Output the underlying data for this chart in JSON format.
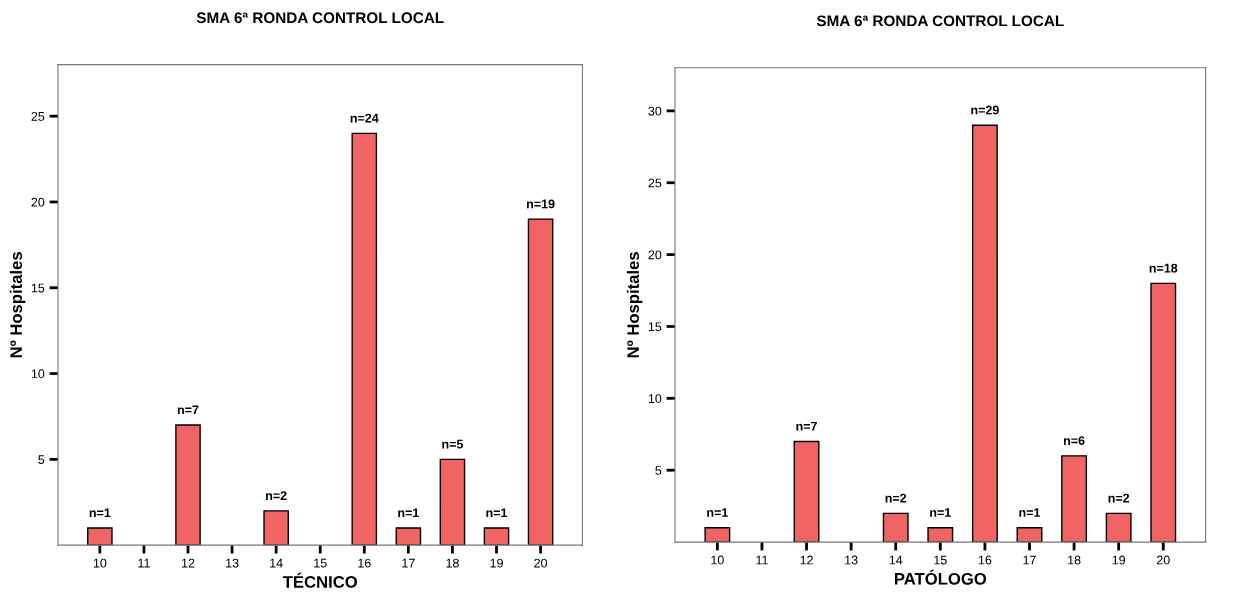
{
  "chart_data": [
    {
      "type": "bar",
      "title": "SMA 6ª RONDA CONTROL LOCAL",
      "xlabel": "TÉCNICO",
      "ylabel": "Nº Hospitales",
      "categories": [
        "10",
        "11",
        "12",
        "13",
        "14",
        "15",
        "16",
        "17",
        "18",
        "19",
        "20"
      ],
      "values": [
        1,
        0,
        7,
        0,
        2,
        0,
        24,
        1,
        5,
        1,
        19
      ],
      "value_labels": [
        "n=1",
        null,
        "n=7",
        null,
        "n=2",
        null,
        "n=24",
        "n=1",
        "n=5",
        "n=1",
        "n=19"
      ],
      "color": "#f06464",
      "ylim": [
        0,
        28
      ],
      "yticks": [
        5,
        10,
        15,
        20,
        25
      ],
      "grid": false,
      "legend": false
    },
    {
      "type": "bar",
      "title": "SMA 6ª RONDA CONTROL LOCAL",
      "xlabel": "PATÓLOGO",
      "ylabel": "Nº Hospitales",
      "categories": [
        "10",
        "11",
        "12",
        "13",
        "14",
        "15",
        "16",
        "17",
        "18",
        "19",
        "20"
      ],
      "values": [
        1,
        0,
        7,
        0,
        2,
        1,
        29,
        1,
        6,
        2,
        18
      ],
      "value_labels": [
        "n=1",
        null,
        "n=7",
        null,
        "n=2",
        "n=1",
        "n=29",
        "n=1",
        "n=6",
        "n=2",
        "n=18"
      ],
      "color": "#f06464",
      "ylim": [
        0,
        33
      ],
      "yticks": [
        5,
        10,
        15,
        20,
        25,
        30
      ],
      "grid": false,
      "legend": false
    }
  ]
}
